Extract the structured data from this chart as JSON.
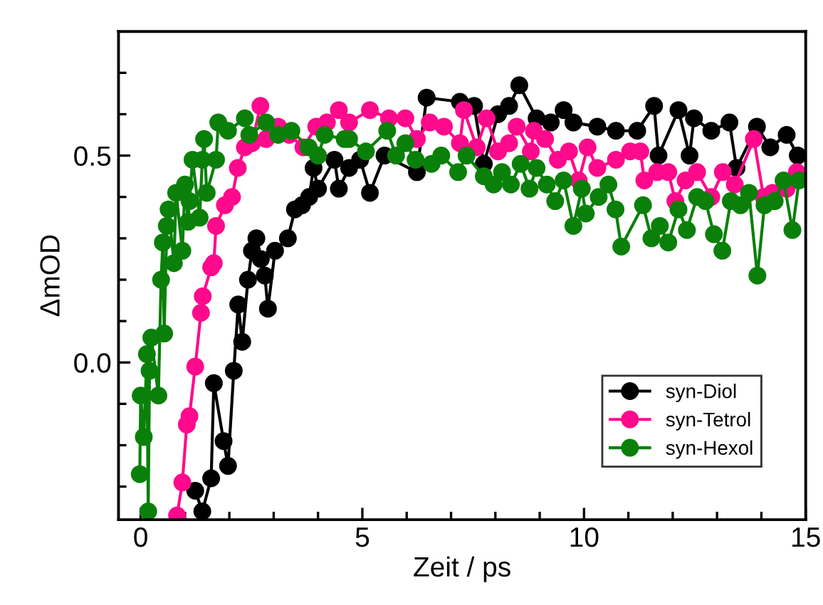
{
  "chart_data": {
    "type": "line",
    "xlabel": "Zeit / ps",
    "ylabel": "ΔmOD",
    "marker": "circle",
    "line_style": "solid",
    "legend": "bottom right",
    "grid": false,
    "xlim": [
      -0.5,
      15
    ],
    "ylim": [
      -0.38,
      0.8
    ],
    "xticks": [
      0,
      {
        "value": 1,
        "label": null
      },
      {
        "value": 2,
        "label": null
      },
      {
        "value": 3,
        "label": null
      },
      {
        "value": 4,
        "label": null
      },
      5,
      {
        "value": 6,
        "label": null
      },
      {
        "value": 7,
        "label": null
      },
      {
        "value": 8,
        "label": null
      },
      {
        "value": 9,
        "label": null
      },
      10,
      {
        "value": 11,
        "label": null
      },
      {
        "value": 12,
        "label": null
      },
      {
        "value": 13,
        "label": null
      },
      {
        "value": 14,
        "label": null
      },
      15
    ],
    "yticks": [
      {
        "value": -0.3,
        "label": null
      },
      {
        "value": -0.2,
        "label": null
      },
      {
        "value": -0.1,
        "label": null
      },
      {
        "value": 0.0,
        "label": "0.0"
      },
      {
        "value": 0.1,
        "label": null
      },
      {
        "value": 0.2,
        "label": null
      },
      {
        "value": 0.3,
        "label": null
      },
      {
        "value": 0.4,
        "label": null
      },
      {
        "value": 0.5,
        "label": "0.5"
      },
      {
        "value": 0.6,
        "label": null
      },
      {
        "value": 0.7,
        "label": null
      }
    ],
    "series": [
      {
        "name": "syn-Diol",
        "color": "#000000",
        "x": [
          1.23,
          1.39,
          1.59,
          1.65,
          1.87,
          1.97,
          2.1,
          2.2,
          2.29,
          2.42,
          2.51,
          2.61,
          2.71,
          2.8,
          2.87,
          3.03,
          3.32,
          3.48,
          3.64,
          3.8,
          3.9,
          4.0,
          4.37,
          4.47,
          4.7,
          4.95,
          5.17,
          5.5,
          6.23,
          6.45,
          7.2,
          7.52,
          7.74,
          8.06,
          8.31,
          8.54,
          8.93,
          9.25,
          9.54,
          9.76,
          10.3,
          10.72,
          11.2,
          11.58,
          11.68,
          12.13,
          12.38,
          12.48,
          12.87,
          13.28,
          13.44,
          13.9,
          14.2,
          14.57,
          14.82
        ],
        "values": [
          -0.31,
          -0.36,
          -0.28,
          -0.05,
          -0.19,
          -0.25,
          -0.02,
          0.14,
          0.05,
          0.2,
          0.27,
          0.3,
          0.25,
          0.21,
          0.13,
          0.27,
          0.3,
          0.37,
          0.38,
          0.4,
          0.47,
          0.42,
          0.49,
          0.42,
          0.47,
          0.49,
          0.41,
          0.5,
          0.46,
          0.64,
          0.63,
          0.62,
          0.48,
          0.6,
          0.62,
          0.67,
          0.59,
          0.58,
          0.61,
          0.58,
          0.57,
          0.56,
          0.56,
          0.62,
          0.5,
          0.61,
          0.5,
          0.59,
          0.56,
          0.58,
          0.47,
          0.57,
          0.52,
          0.55,
          0.5
        ]
      },
      {
        "name": "syn-Tetrol",
        "color": "#ff0a8c",
        "x": [
          0.82,
          0.94,
          1.04,
          1.1,
          1.23,
          1.36,
          1.4,
          1.59,
          1.65,
          1.7,
          1.9,
          2.06,
          2.19,
          2.35,
          2.51,
          2.7,
          2.83,
          3.1,
          3.35,
          3.67,
          3.96,
          4.2,
          4.47,
          4.7,
          5.17,
          5.6,
          5.97,
          6.23,
          6.52,
          6.84,
          7.2,
          7.29,
          7.58,
          7.8,
          8.06,
          8.31,
          8.48,
          8.8,
          8.87,
          9.12,
          9.41,
          9.66,
          9.88,
          10.08,
          10.3,
          10.72,
          11.04,
          11.27,
          11.36,
          11.65,
          11.9,
          12.06,
          12.29,
          12.55,
          12.87,
          13.13,
          13.4,
          13.83,
          14.05,
          14.25,
          14.57,
          14.8
        ],
        "values": [
          -0.37,
          -0.29,
          -0.15,
          -0.13,
          -0.01,
          0.12,
          0.16,
          0.23,
          0.24,
          0.33,
          0.38,
          0.4,
          0.47,
          0.52,
          0.53,
          0.62,
          0.54,
          0.57,
          0.55,
          0.52,
          0.57,
          0.58,
          0.61,
          0.58,
          0.61,
          0.59,
          0.59,
          0.54,
          0.58,
          0.57,
          0.53,
          0.61,
          0.52,
          0.59,
          0.51,
          0.53,
          0.57,
          0.51,
          0.56,
          0.54,
          0.49,
          0.51,
          0.44,
          0.52,
          0.47,
          0.49,
          0.51,
          0.51,
          0.44,
          0.46,
          0.46,
          0.39,
          0.44,
          0.46,
          0.4,
          0.46,
          0.43,
          0.54,
          0.4,
          0.41,
          0.42,
          0.46
        ]
      },
      {
        "name": "syn-Hexol",
        "color": "#0a800a",
        "x": [
          -0.02,
          0.0,
          0.07,
          0.14,
          0.17,
          0.2,
          0.24,
          0.4,
          0.46,
          0.5,
          0.53,
          0.59,
          0.63,
          0.75,
          0.8,
          0.94,
          1.0,
          1.07,
          1.1,
          1.17,
          1.33,
          1.39,
          1.43,
          1.49,
          1.7,
          1.75,
          1.97,
          2.35,
          2.45,
          2.83,
          3.1,
          3.4,
          3.79,
          4.0,
          4.15,
          4.6,
          4.7,
          5.08,
          5.56,
          5.76,
          5.97,
          6.2,
          6.56,
          6.78,
          7.16,
          7.35,
          7.74,
          7.96,
          8.15,
          8.35,
          8.57,
          8.77,
          8.93,
          9.16,
          9.35,
          9.54,
          9.76,
          9.95,
          10.04,
          10.33,
          10.55,
          10.71,
          10.84,
          11.33,
          11.52,
          11.71,
          11.9,
          12.13,
          12.32,
          12.55,
          12.74,
          12.93,
          13.12,
          13.31,
          13.53,
          13.72,
          13.91,
          14.07,
          14.3,
          14.5,
          14.7,
          14.85
        ],
        "values": [
          -0.27,
          -0.08,
          -0.18,
          0.02,
          -0.36,
          -0.02,
          0.06,
          -0.08,
          0.2,
          0.29,
          0.07,
          0.33,
          0.37,
          0.24,
          0.41,
          0.27,
          0.43,
          0.34,
          0.39,
          0.49,
          0.35,
          0.49,
          0.54,
          0.41,
          0.49,
          0.58,
          0.56,
          0.59,
          0.55,
          0.58,
          0.55,
          0.56,
          0.52,
          0.5,
          0.55,
          0.54,
          0.54,
          0.51,
          0.56,
          0.5,
          0.53,
          0.49,
          0.48,
          0.5,
          0.46,
          0.5,
          0.45,
          0.43,
          0.46,
          0.43,
          0.48,
          0.42,
          0.47,
          0.43,
          0.39,
          0.44,
          0.33,
          0.42,
          0.36,
          0.4,
          0.43,
          0.37,
          0.28,
          0.38,
          0.3,
          0.33,
          0.29,
          0.37,
          0.32,
          0.4,
          0.39,
          0.31,
          0.27,
          0.39,
          0.38,
          0.41,
          0.21,
          0.38,
          0.39,
          0.44,
          0.32,
          0.44
        ]
      }
    ]
  }
}
